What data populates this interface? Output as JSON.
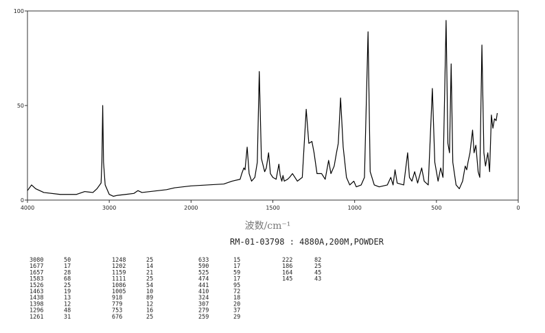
{
  "chart_data": {
    "type": "line",
    "xlabel": "波数/cm⁻¹",
    "subtitle": "RM-01-03798 : 4880A,200M,POWDER",
    "xticks": [
      4000,
      3000,
      2000,
      1500,
      1000,
      500,
      0
    ],
    "yticks": [
      0,
      50,
      100
    ],
    "ylim": [
      0,
      100
    ],
    "color": "#000000",
    "grid": false,
    "x": [
      4000,
      3950,
      3900,
      3800,
      3600,
      3400,
      3300,
      3200,
      3150,
      3100,
      3090,
      3080,
      3070,
      3050,
      3000,
      2950,
      2900,
      2800,
      2700,
      2650,
      2600,
      2500,
      2400,
      2300,
      2200,
      2100,
      2000,
      1900,
      1800,
      1750,
      1700,
      1690,
      1677,
      1670,
      1657,
      1645,
      1630,
      1610,
      1595,
      1583,
      1570,
      1550,
      1540,
      1526,
      1515,
      1500,
      1480,
      1463,
      1455,
      1445,
      1438,
      1430,
      1410,
      1398,
      1380,
      1350,
      1320,
      1296,
      1280,
      1261,
      1248,
      1230,
      1202,
      1180,
      1159,
      1145,
      1125,
      1111,
      1100,
      1086,
      1070,
      1050,
      1030,
      1005,
      990,
      960,
      940,
      918,
      905,
      880,
      850,
      800,
      779,
      765,
      753,
      740,
      700,
      676,
      665,
      650,
      633,
      615,
      590,
      575,
      550,
      525,
      510,
      490,
      474,
      460,
      441,
      430,
      420,
      410,
      400,
      380,
      360,
      340,
      324,
      315,
      307,
      295,
      279,
      270,
      259,
      245,
      235,
      222,
      210,
      200,
      186,
      175,
      164,
      155,
      145,
      135,
      128
    ],
    "values": [
      5,
      8,
      6,
      4,
      3,
      3,
      4.5,
      4,
      6,
      9,
      20,
      50,
      20,
      8,
      3,
      2,
      2.5,
      3,
      3.5,
      5,
      4,
      4.5,
      5,
      5.5,
      6.5,
      7,
      7.5,
      8,
      8.5,
      10,
      11,
      14,
      17,
      16,
      28,
      14,
      10,
      12,
      20,
      68,
      22,
      15,
      17,
      25,
      14,
      12,
      11,
      19,
      13,
      10,
      13,
      10,
      11,
      12,
      14,
      10,
      12,
      48,
      30,
      31,
      25,
      14,
      14,
      11,
      21,
      14,
      18,
      25,
      30,
      54,
      28,
      12,
      8,
      10,
      7,
      8,
      12,
      89,
      15,
      8,
      7,
      8,
      12,
      8,
      16,
      9,
      8,
      25,
      12,
      10,
      15,
      9,
      17,
      10,
      8,
      59,
      20,
      10,
      17,
      12,
      95,
      30,
      25,
      72,
      20,
      8,
      6,
      10,
      18,
      16,
      20,
      25,
      37,
      25,
      29,
      15,
      12,
      82,
      25,
      18,
      25,
      15,
      45,
      38,
      43,
      42,
      46
    ]
  },
  "peak_table": [
    [
      [
        3080,
        50
      ],
      [
        1677,
        17
      ],
      [
        1657,
        28
      ],
      [
        1583,
        68
      ],
      [
        1526,
        25
      ],
      [
        1463,
        19
      ],
      [
        1438,
        13
      ],
      [
        1398,
        12
      ],
      [
        1296,
        48
      ],
      [
        1261,
        31
      ]
    ],
    [
      [
        1248,
        25
      ],
      [
        1202,
        14
      ],
      [
        1159,
        21
      ],
      [
        1111,
        25
      ],
      [
        1086,
        54
      ],
      [
        1005,
        10
      ],
      [
        918,
        89
      ],
      [
        779,
        12
      ],
      [
        753,
        16
      ],
      [
        676,
        25
      ]
    ],
    [
      [
        633,
        15
      ],
      [
        590,
        17
      ],
      [
        525,
        59
      ],
      [
        474,
        17
      ],
      [
        441,
        95
      ],
      [
        410,
        72
      ],
      [
        324,
        18
      ],
      [
        307,
        20
      ],
      [
        279,
        37
      ],
      [
        259,
        29
      ]
    ],
    [
      [
        222,
        82
      ],
      [
        186,
        25
      ],
      [
        164,
        45
      ],
      [
        145,
        43
      ]
    ]
  ]
}
